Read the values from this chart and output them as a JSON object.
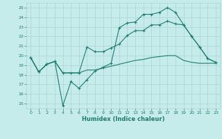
{
  "xlabel": "Humidex (Indice chaleur)",
  "bg_color": "#c5ecea",
  "grid_color": "#aad4d0",
  "line_color": "#1e7b70",
  "xlim": [
    -0.5,
    23.5
  ],
  "ylim": [
    14.5,
    25.5
  ],
  "xticks": [
    0,
    1,
    2,
    3,
    4,
    5,
    6,
    7,
    8,
    9,
    10,
    11,
    12,
    13,
    14,
    15,
    16,
    17,
    18,
    19,
    20,
    21,
    22,
    23
  ],
  "yticks": [
    15,
    16,
    17,
    18,
    19,
    20,
    21,
    22,
    23,
    24,
    25
  ],
  "line1_x": [
    0,
    1,
    2,
    3,
    4,
    5,
    6,
    7,
    8,
    9,
    10,
    11,
    12,
    13,
    14,
    15,
    16,
    17,
    18,
    19,
    20,
    21,
    22,
    23
  ],
  "line1_y": [
    19.8,
    18.3,
    19.1,
    19.4,
    14.8,
    17.3,
    16.6,
    17.5,
    18.4,
    18.8,
    19.2,
    22.9,
    23.4,
    23.5,
    24.3,
    24.3,
    24.5,
    25.0,
    24.5,
    23.2,
    22.0,
    20.9,
    19.7,
    19.3
  ],
  "line2_x": [
    0,
    1,
    2,
    3,
    4,
    5,
    6,
    7,
    8,
    9,
    10,
    11,
    12,
    13,
    14,
    15,
    16,
    17,
    18,
    19,
    20,
    21,
    22,
    23
  ],
  "line2_y": [
    19.8,
    18.3,
    19.1,
    19.4,
    18.2,
    18.2,
    18.2,
    20.9,
    20.4,
    20.4,
    20.8,
    21.2,
    22.1,
    22.6,
    22.6,
    23.2,
    23.2,
    23.6,
    23.3,
    23.2,
    22.0,
    20.9,
    19.7,
    19.3
  ],
  "line3_x": [
    0,
    1,
    2,
    3,
    4,
    5,
    6,
    7,
    8,
    9,
    10,
    11,
    12,
    13,
    14,
    15,
    16,
    17,
    18,
    19,
    20,
    21,
    22,
    23
  ],
  "line3_y": [
    19.8,
    18.3,
    19.1,
    19.4,
    18.2,
    18.2,
    18.2,
    18.5,
    18.5,
    18.7,
    18.9,
    19.1,
    19.3,
    19.5,
    19.6,
    19.8,
    19.9,
    20.0,
    20.0,
    19.5,
    19.3,
    19.2,
    19.2,
    19.2
  ]
}
